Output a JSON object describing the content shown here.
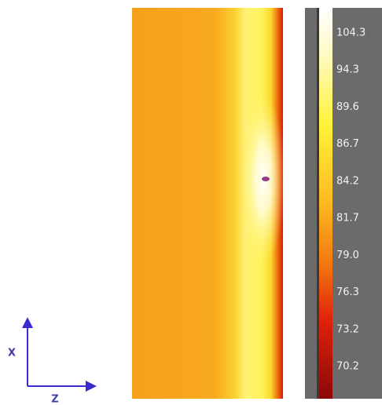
{
  "axes": {
    "vertical_label": "X",
    "horizontal_label": "Z"
  },
  "colorbar": {
    "labels": [
      "104.3",
      "94.3",
      "89.6",
      "86.7",
      "84.2",
      "81.7",
      "79.0",
      "76.3",
      "73.2",
      "70.2"
    ]
  }
}
